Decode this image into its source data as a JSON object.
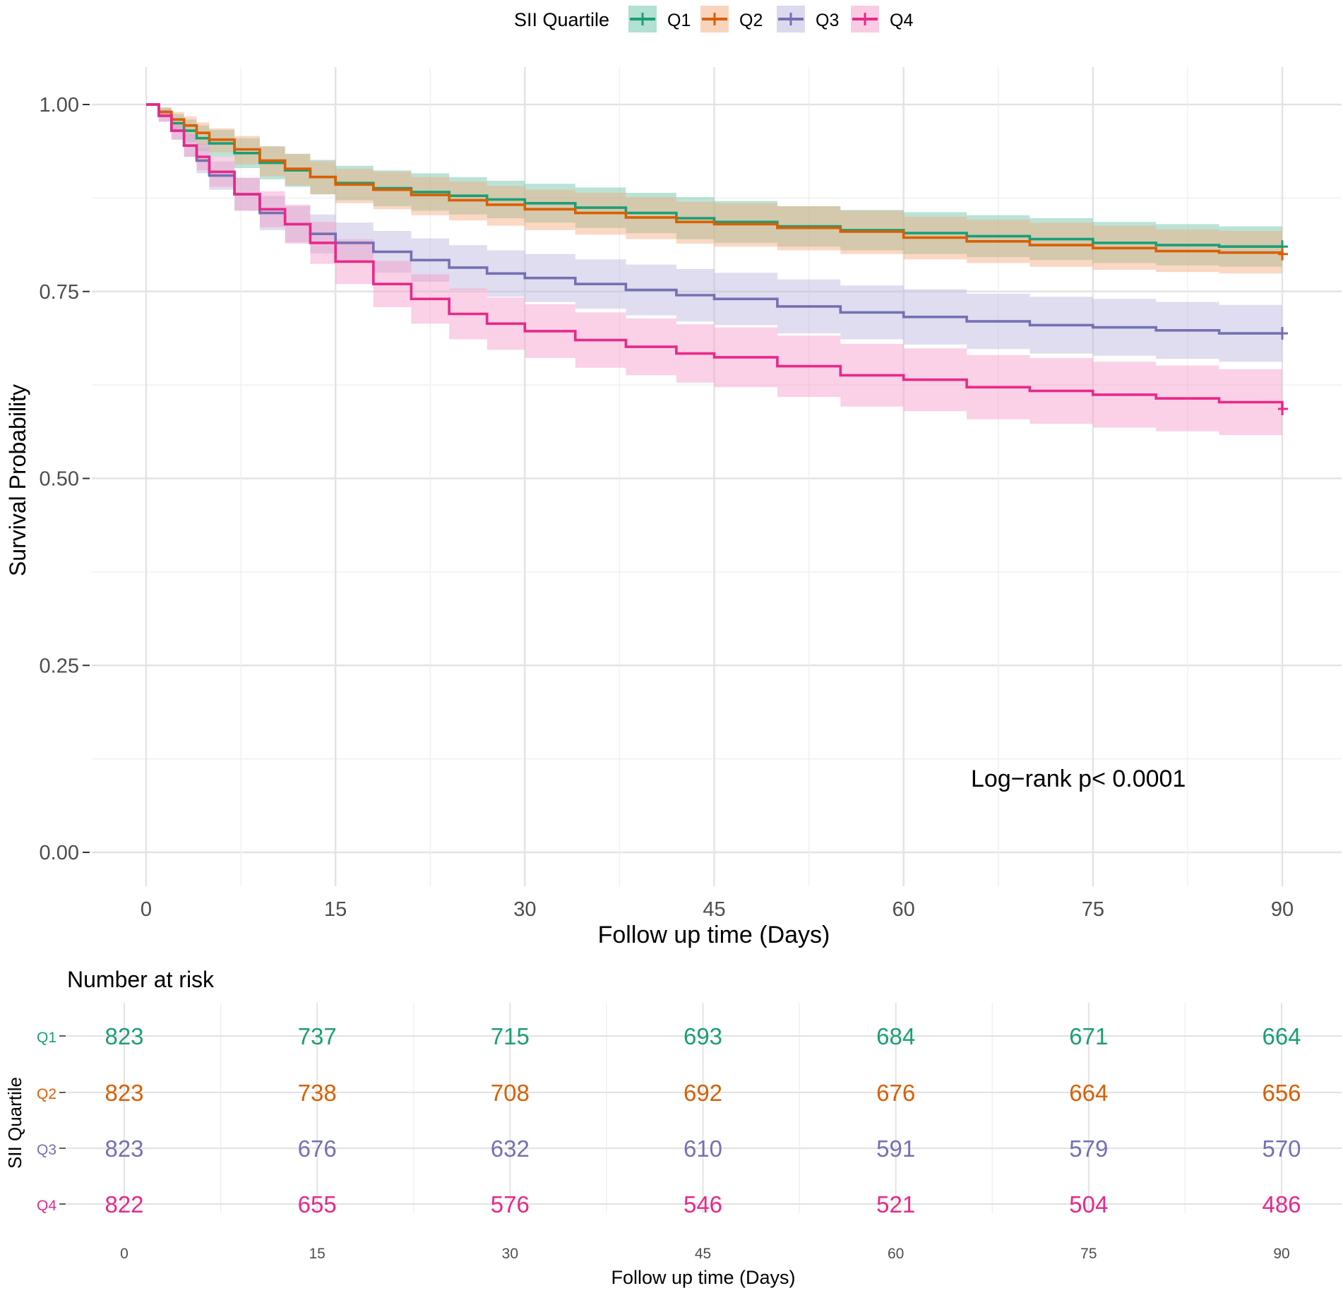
{
  "chart_data": [
    {
      "type": "line",
      "subtype": "kaplan-meier",
      "title": "",
      "xlabel": "Follow up time (Days)",
      "ylabel": "Survival Probability",
      "xlim": [
        0,
        90
      ],
      "ylim": [
        0,
        1
      ],
      "x_ticks": [
        "0",
        "15",
        "30",
        "45",
        "60",
        "75",
        "90"
      ],
      "y_ticks": [
        "0.00",
        "0.25",
        "0.50",
        "0.75",
        "1.00"
      ],
      "grid": true,
      "legend": {
        "title": "SII Quartile",
        "position": "top",
        "entries": [
          "Q1",
          "Q2",
          "Q3",
          "Q4"
        ]
      },
      "annotation": "Log−rank p< 0.0001",
      "series": [
        {
          "name": "Q1",
          "color": "#1B9E77",
          "band_color": "#66C2A5",
          "x": [
            0,
            1,
            2,
            3,
            4,
            5,
            7,
            9,
            11,
            13,
            15,
            18,
            21,
            24,
            27,
            30,
            34,
            38,
            42,
            45,
            50,
            55,
            60,
            65,
            70,
            75,
            80,
            85,
            90
          ],
          "y": [
            1.0,
            0.99,
            0.975,
            0.965,
            0.955,
            0.948,
            0.935,
            0.922,
            0.912,
            0.903,
            0.895,
            0.888,
            0.883,
            0.878,
            0.873,
            0.868,
            0.862,
            0.855,
            0.848,
            0.843,
            0.837,
            0.832,
            0.828,
            0.824,
            0.82,
            0.815,
            0.812,
            0.81,
            0.81
          ],
          "lower": [
            1.0,
            0.984,
            0.963,
            0.95,
            0.938,
            0.93,
            0.915,
            0.9,
            0.89,
            0.88,
            0.872,
            0.864,
            0.858,
            0.853,
            0.848,
            0.842,
            0.835,
            0.828,
            0.82,
            0.815,
            0.81,
            0.805,
            0.8,
            0.796,
            0.792,
            0.788,
            0.785,
            0.783,
            0.782
          ],
          "upper": [
            1.0,
            0.996,
            0.987,
            0.98,
            0.972,
            0.966,
            0.955,
            0.944,
            0.934,
            0.926,
            0.918,
            0.912,
            0.908,
            0.903,
            0.898,
            0.894,
            0.889,
            0.882,
            0.876,
            0.871,
            0.864,
            0.859,
            0.856,
            0.852,
            0.848,
            0.843,
            0.84,
            0.837,
            0.836
          ]
        },
        {
          "name": "Q2",
          "color": "#D95F02",
          "band_color": "#F4A97C",
          "x": [
            0,
            1,
            2,
            3,
            4,
            5,
            7,
            9,
            11,
            13,
            15,
            18,
            21,
            24,
            27,
            30,
            34,
            38,
            42,
            45,
            50,
            55,
            60,
            65,
            70,
            75,
            80,
            85,
            90
          ],
          "y": [
            1.0,
            0.99,
            0.98,
            0.972,
            0.962,
            0.953,
            0.94,
            0.925,
            0.914,
            0.903,
            0.893,
            0.886,
            0.879,
            0.872,
            0.866,
            0.86,
            0.855,
            0.849,
            0.843,
            0.84,
            0.835,
            0.83,
            0.822,
            0.817,
            0.812,
            0.808,
            0.804,
            0.802,
            0.8
          ],
          "lower": [
            1.0,
            0.984,
            0.968,
            0.958,
            0.946,
            0.936,
            0.92,
            0.904,
            0.892,
            0.88,
            0.868,
            0.86,
            0.852,
            0.845,
            0.838,
            0.832,
            0.826,
            0.82,
            0.814,
            0.81,
            0.805,
            0.8,
            0.793,
            0.788,
            0.783,
            0.779,
            0.776,
            0.774,
            0.772
          ],
          "upper": [
            1.0,
            0.996,
            0.99,
            0.984,
            0.976,
            0.968,
            0.958,
            0.944,
            0.934,
            0.924,
            0.914,
            0.91,
            0.903,
            0.897,
            0.891,
            0.886,
            0.882,
            0.876,
            0.87,
            0.868,
            0.864,
            0.858,
            0.85,
            0.846,
            0.842,
            0.838,
            0.833,
            0.831,
            0.83
          ]
        },
        {
          "name": "Q3",
          "color": "#7570B3",
          "band_color": "#B7B3DB",
          "x": [
            0,
            1,
            2,
            3,
            4,
            5,
            7,
            9,
            11,
            13,
            15,
            18,
            21,
            24,
            27,
            30,
            34,
            38,
            42,
            45,
            50,
            55,
            60,
            65,
            70,
            75,
            80,
            85,
            90
          ],
          "y": [
            1.0,
            0.985,
            0.965,
            0.945,
            0.925,
            0.905,
            0.88,
            0.855,
            0.84,
            0.827,
            0.815,
            0.803,
            0.792,
            0.782,
            0.774,
            0.768,
            0.76,
            0.752,
            0.745,
            0.74,
            0.73,
            0.722,
            0.716,
            0.71,
            0.705,
            0.702,
            0.698,
            0.694,
            0.694
          ],
          "lower": [
            1.0,
            0.977,
            0.953,
            0.93,
            0.908,
            0.886,
            0.858,
            0.832,
            0.816,
            0.801,
            0.788,
            0.775,
            0.763,
            0.752,
            0.743,
            0.736,
            0.727,
            0.718,
            0.71,
            0.705,
            0.694,
            0.686,
            0.679,
            0.673,
            0.667,
            0.664,
            0.66,
            0.656,
            0.655
          ],
          "upper": [
            1.0,
            0.993,
            0.977,
            0.96,
            0.942,
            0.924,
            0.902,
            0.878,
            0.864,
            0.853,
            0.842,
            0.831,
            0.821,
            0.812,
            0.805,
            0.8,
            0.793,
            0.786,
            0.78,
            0.775,
            0.766,
            0.758,
            0.753,
            0.747,
            0.743,
            0.74,
            0.736,
            0.732,
            0.733
          ]
        },
        {
          "name": "Q4",
          "color": "#E7298A",
          "band_color": "#F49AC8",
          "x": [
            0,
            1,
            2,
            3,
            4,
            5,
            7,
            9,
            11,
            13,
            15,
            18,
            21,
            24,
            27,
            30,
            34,
            38,
            42,
            45,
            50,
            55,
            60,
            65,
            70,
            75,
            80,
            85,
            90
          ],
          "y": [
            1.0,
            0.985,
            0.965,
            0.945,
            0.93,
            0.91,
            0.88,
            0.86,
            0.84,
            0.815,
            0.79,
            0.76,
            0.74,
            0.72,
            0.707,
            0.697,
            0.685,
            0.676,
            0.667,
            0.662,
            0.65,
            0.638,
            0.632,
            0.622,
            0.617,
            0.612,
            0.607,
            0.602,
            0.593
          ],
          "lower": [
            1.0,
            0.977,
            0.953,
            0.93,
            0.912,
            0.89,
            0.858,
            0.836,
            0.814,
            0.787,
            0.76,
            0.729,
            0.707,
            0.686,
            0.672,
            0.661,
            0.648,
            0.638,
            0.628,
            0.622,
            0.609,
            0.596,
            0.59,
            0.579,
            0.573,
            0.568,
            0.563,
            0.558,
            0.555
          ],
          "upper": [
            1.0,
            0.993,
            0.977,
            0.96,
            0.948,
            0.93,
            0.902,
            0.884,
            0.866,
            0.843,
            0.82,
            0.791,
            0.773,
            0.754,
            0.742,
            0.733,
            0.722,
            0.714,
            0.706,
            0.702,
            0.691,
            0.68,
            0.674,
            0.665,
            0.661,
            0.656,
            0.651,
            0.646,
            0.638
          ]
        }
      ]
    },
    {
      "type": "table",
      "title": "Number at risk",
      "xlabel": "Follow up time (Days)",
      "ylabel": "SII Quartile",
      "columns": [
        "0",
        "15",
        "30",
        "45",
        "60",
        "75",
        "90"
      ],
      "rows": [
        {
          "name": "Q1",
          "color": "#1B9E77",
          "values": [
            823,
            737,
            715,
            693,
            684,
            671,
            664
          ]
        },
        {
          "name": "Q2",
          "color": "#D95F02",
          "values": [
            823,
            738,
            708,
            692,
            676,
            664,
            656
          ]
        },
        {
          "name": "Q3",
          "color": "#7570B3",
          "values": [
            823,
            676,
            632,
            610,
            591,
            579,
            570
          ]
        },
        {
          "name": "Q4",
          "color": "#E7298A",
          "values": [
            822,
            655,
            576,
            546,
            521,
            504,
            486
          ]
        }
      ]
    }
  ]
}
